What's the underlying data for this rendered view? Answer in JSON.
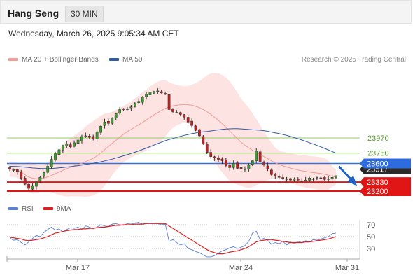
{
  "header": {
    "instrument": "Hang Seng",
    "timeframe": "30 MIN"
  },
  "datetime": "Wednesday, March 26, 2025 9:05:34 AM CET",
  "legend": [
    {
      "label": "MA 20 + Bollinger Bands",
      "color": "#f39a96"
    },
    {
      "label": "MA 50",
      "color": "#2e5aa8"
    }
  ],
  "copyright": "Research © 2025 Trading Central",
  "rsi_legend": [
    {
      "label": "RSI",
      "color": "#5b7fd6"
    },
    {
      "label": "9MA",
      "color": "#e02020"
    }
  ],
  "chart_data": [
    {
      "type": "candlestick",
      "title": "Hang Seng",
      "timeframe": "30 MIN",
      "x_tick_labels": [
        "Mar 17",
        "Mar 24",
        "Mar 31"
      ],
      "ylim": [
        23080,
        23990
      ],
      "grid": false,
      "closes": [
        23520,
        23510,
        23480,
        23380,
        23300,
        23240,
        23280,
        23330,
        23400,
        23470,
        23560,
        23660,
        23740,
        23800,
        23860,
        23880,
        23840,
        23900,
        23940,
        23990,
        24000,
        23980,
        23960,
        24060,
        24140,
        24200,
        24180,
        24260,
        24320,
        24380,
        24380,
        24390,
        24420,
        24470,
        24500,
        24560,
        24600,
        24630,
        24640,
        24650,
        24620,
        24600,
        24380,
        24350,
        24340,
        24310,
        24270,
        24200,
        24150,
        24080,
        24000,
        23880,
        23760,
        23700,
        23680,
        23660,
        23640,
        23570,
        23540,
        23600,
        23530,
        23520,
        23520,
        23580,
        23640,
        23780,
        23620,
        23580,
        23520,
        23440,
        23420,
        23400,
        23380,
        23380,
        23360,
        23380,
        23360,
        23350,
        23360,
        23390,
        23380,
        23400,
        23390,
        23370,
        23380,
        23400,
        23420
      ],
      "horizontal_levels": [
        {
          "value": 23970,
          "color": "#8fcf5e",
          "label_color": "#5a9e2e",
          "style": "plain"
        },
        {
          "value": 23750,
          "color": "#8fcf5e",
          "label_color": "#5a9e2e",
          "style": "plain"
        },
        {
          "value": 23600,
          "color": "#3a6fd8",
          "label_color": "#ffffff",
          "label_bg": "#2f6be0",
          "style": "tag"
        },
        {
          "value": 23330,
          "color": "#e01616",
          "label_color": "#ffffff",
          "label_bg": "#e01616",
          "style": "tag"
        },
        {
          "value": 23200,
          "color": "#e01616",
          "label_color": "#ffffff",
          "label_bg": "#e01616",
          "style": "tag"
        }
      ],
      "current_price": {
        "value": 23517,
        "label_bg": "#2b2b2b"
      },
      "forecast_arrow": {
        "from_value": 23560,
        "to_value": 23300,
        "color": "#1f5fc8"
      },
      "series": [
        {
          "name": "MA 20 + Bollinger Bands",
          "color": "#f39a96",
          "band_color": "#fde0df"
        },
        {
          "name": "MA 50",
          "color": "#2e5aa8"
        }
      ]
    },
    {
      "type": "line",
      "title": "RSI",
      "ylim": [
        10,
        85
      ],
      "y_tick_labels": [
        "70",
        "50",
        "30"
      ],
      "reference_levels": [
        70,
        50,
        30
      ],
      "series": [
        {
          "name": "RSI",
          "color": "#5b7fd6",
          "values": [
            48,
            44,
            45,
            40,
            36,
            41,
            47,
            52,
            50,
            57,
            62,
            66,
            61,
            63,
            58,
            62,
            65,
            64,
            66,
            62,
            68,
            66,
            63,
            66,
            70,
            68,
            67,
            71,
            72,
            70,
            69,
            72,
            71,
            73,
            74,
            71,
            72,
            73,
            73,
            72,
            70,
            71,
            42,
            45,
            40,
            36,
            38,
            30,
            28,
            25,
            23,
            19,
            16,
            16,
            18,
            22,
            26,
            28,
            31,
            33,
            30,
            32,
            35,
            42,
            56,
            59,
            45,
            47,
            44,
            37,
            40,
            38,
            42,
            36,
            41,
            38,
            42,
            40,
            43,
            41,
            45,
            44,
            46,
            48,
            50,
            55,
            56
          ]
        },
        {
          "name": "9MA",
          "color": "#e02020",
          "values": [
            49,
            48,
            47,
            46,
            44,
            43,
            44,
            45,
            46,
            48,
            50,
            53,
            56,
            57,
            59,
            60,
            61,
            62,
            62,
            63,
            63,
            64,
            64,
            65,
            66,
            66,
            67,
            68,
            69,
            69,
            70,
            70,
            70,
            71,
            71,
            71,
            72,
            72,
            72,
            72,
            72,
            72,
            68,
            64,
            60,
            56,
            52,
            48,
            44,
            40,
            36,
            32,
            28,
            25,
            23,
            21,
            21,
            22,
            24,
            25,
            26,
            28,
            30,
            33,
            37,
            41,
            43,
            44,
            45,
            45,
            44,
            43,
            42,
            41,
            40,
            40,
            40,
            40,
            41,
            41,
            42,
            43,
            44,
            45,
            46,
            48,
            50
          ]
        }
      ]
    }
  ]
}
